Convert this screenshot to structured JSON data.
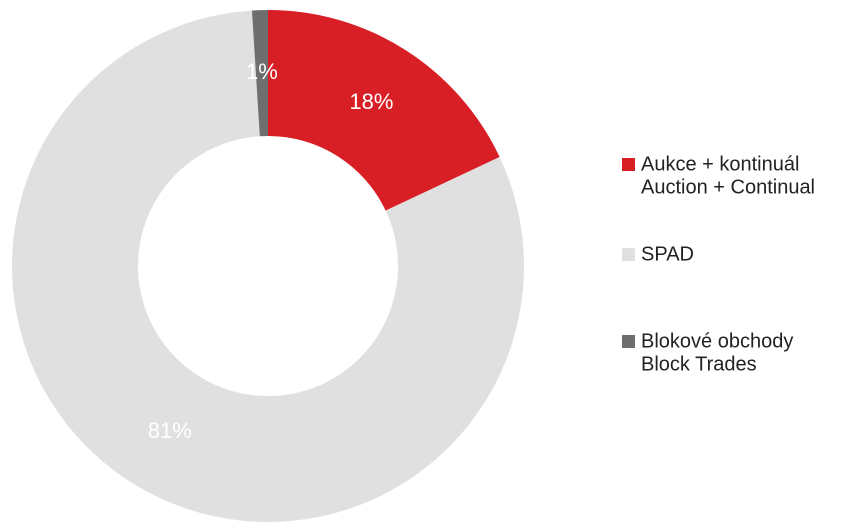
{
  "chart_data": {
    "type": "donut",
    "categories": [
      [
        "Aukce + kontinuál",
        "Auction + Continual"
      ],
      [
        "SPAD"
      ],
      [
        "Blokové obchody",
        "Block Trades"
      ]
    ],
    "values": [
      18,
      81,
      1
    ],
    "value_labels": [
      "18%",
      "81%",
      "1%"
    ],
    "colors": [
      "#d91f26",
      "#e0e0e0",
      "#6e6e6e"
    ],
    "legend": "right"
  }
}
